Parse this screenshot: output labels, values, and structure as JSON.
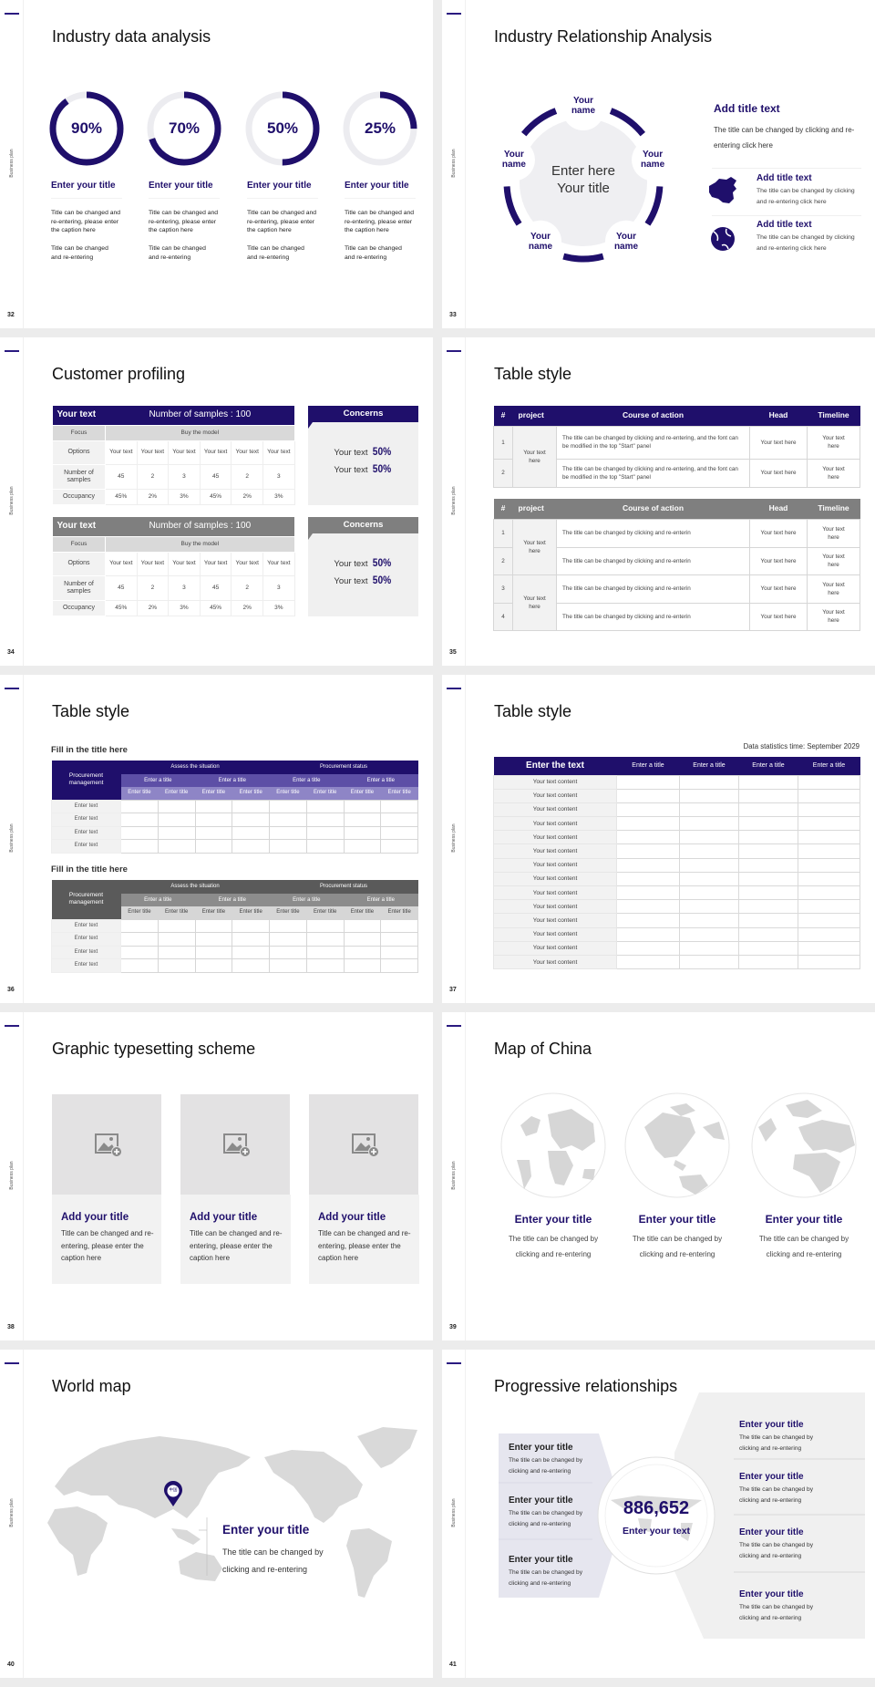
{
  "sidebar_label": "Business plan",
  "colors": {
    "navy": "#1f0f6b",
    "gray_header": "#7f7f7f",
    "light_panel": "#f0f0f0",
    "lavender_panel": "#e6e6ef",
    "map_gray": "#d9d9d9"
  },
  "s32": {
    "number": "32",
    "title": "Industry data analysis",
    "items": [
      {
        "label": "90%",
        "value": 90,
        "title": "Enter your title",
        "caption": "Title can be changed and re-entering, please enter the caption here",
        "note": "Title can be changed and re-entering"
      },
      {
        "label": "70%",
        "value": 70,
        "title": "Enter your title",
        "caption": "Title can be changed and re-entering, please enter the caption here",
        "note": "Title can be changed and re-entering"
      },
      {
        "label": "50%",
        "value": 50,
        "title": "Enter your title",
        "caption": "Title can be changed and re-entering, please enter the caption here",
        "note": "Title can be changed and re-entering"
      },
      {
        "label": "25%",
        "value": 25,
        "title": "Enter your title",
        "caption": "Title can be changed and re-entering, please enter the caption here",
        "note": "Title can be changed and re-entering"
      }
    ]
  },
  "s33": {
    "number": "33",
    "title": "Industry Relationship Analysis",
    "center_line1": "Enter here",
    "center_line2": "Your title",
    "names": [
      "Your name",
      "Your name",
      "Your name",
      "Your name",
      "Your name"
    ],
    "panel": {
      "title": "Add title text",
      "text": "The title can be changed by clicking and re-entering click here"
    },
    "items": [
      {
        "icon": "china-map-icon",
        "title": "Add title text",
        "text": "The title can be changed by clicking and re-entering click here"
      },
      {
        "icon": "globe-icon",
        "title": "Add title text",
        "text": "The title can be changed by clicking and re-entering click here"
      }
    ]
  },
  "s34": {
    "number": "34",
    "title": "Customer profiling",
    "tables": [
      {
        "style": "navy",
        "header_left": "Your text",
        "header_right": "Number of samples : 100",
        "focus_label": "Focus",
        "focus_value": "Buy the model",
        "rows": [
          {
            "label": "Options",
            "cells": [
              "Your text",
              "Your text",
              "Your text",
              "Your text",
              "Your text",
              "Your text"
            ]
          },
          {
            "label": "Number of samples",
            "cells": [
              "45",
              "2",
              "3",
              "45",
              "2",
              "3"
            ]
          },
          {
            "label": "Occupancy",
            "cells": [
              "45%",
              "2%",
              "3%",
              "45%",
              "2%",
              "3%"
            ]
          }
        ],
        "concerns": {
          "title": "Concerns",
          "lines": [
            {
              "text": "Your text",
              "value": "50%"
            },
            {
              "text": "Your text",
              "value": "50%"
            }
          ]
        }
      },
      {
        "style": "gray",
        "header_left": "Your text",
        "header_right": "Number of samples : 100",
        "focus_label": "Focus",
        "focus_value": "Buy the model",
        "rows": [
          {
            "label": "Options",
            "cells": [
              "Your text",
              "Your text",
              "Your text",
              "Your text",
              "Your text",
              "Your text"
            ]
          },
          {
            "label": "Number of samples",
            "cells": [
              "45",
              "2",
              "3",
              "45",
              "2",
              "3"
            ]
          },
          {
            "label": "Occupancy",
            "cells": [
              "45%",
              "2%",
              "3%",
              "45%",
              "2%",
              "3%"
            ]
          }
        ],
        "concerns": {
          "title": "Concerns",
          "lines": [
            {
              "text": "Your text",
              "value": "50%"
            },
            {
              "text": "Your text",
              "value": "50%"
            }
          ]
        }
      }
    ]
  },
  "s35": {
    "number": "35",
    "title": "Table style",
    "tables": [
      {
        "style": "navy",
        "headers": [
          "#",
          "project",
          "Course of action",
          "Head",
          "Timeline"
        ],
        "projects": [
          {
            "text": "Your text here",
            "span": 2
          }
        ],
        "rows": [
          {
            "n": "1",
            "action": "The title can be changed by clicking and re-entering, and the font can be modified in the top \"Start\" panel",
            "head": "Your text here",
            "timeline": "Your text here"
          },
          {
            "n": "2",
            "action": "The title can be changed by clicking and re-entering, and the font can be modified in the top \"Start\" panel",
            "head": "Your text here",
            "timeline": "Your text here"
          }
        ]
      },
      {
        "style": "gray",
        "headers": [
          "#",
          "project",
          "Course of action",
          "Head",
          "Timeline"
        ],
        "projects": [
          {
            "text": "Your text here",
            "span": 2
          },
          {
            "text": "Your text here",
            "span": 2
          }
        ],
        "rows": [
          {
            "n": "1",
            "action": "The title can be changed by clicking and re-enterin",
            "head": "Your text here",
            "timeline": "Your text here"
          },
          {
            "n": "2",
            "action": "The title can be changed by clicking and re-enterin",
            "head": "Your text here",
            "timeline": "Your text here"
          },
          {
            "n": "3",
            "action": "The title can be changed by clicking and re-enterin",
            "head": "Your text here",
            "timeline": "Your text here"
          },
          {
            "n": "4",
            "action": "The title can be changed by clicking and re-enterin",
            "head": "Your text here",
            "timeline": "Your text here"
          }
        ]
      }
    ]
  },
  "s36": {
    "number": "36",
    "title": "Table style",
    "tables": [
      {
        "style": "navy",
        "heading": "Fill in the title here",
        "corner": "Procurement management",
        "groups": [
          "Assess the situation",
          "Procurement status"
        ],
        "subgroups": [
          "Enter a title",
          "Enter a title",
          "Enter a title",
          "Enter a title"
        ],
        "columns": [
          "Enter title",
          "Enter title",
          "Enter title",
          "Enter title",
          "Enter title",
          "Enter title",
          "Enter title",
          "Enter title"
        ],
        "rows": [
          "Enter text",
          "Enter text",
          "Enter text",
          "Enter text"
        ]
      },
      {
        "style": "gray",
        "heading": "Fill in the title here",
        "corner": "Procurement management",
        "groups": [
          "Assess the situation",
          "Procurement status"
        ],
        "subgroups": [
          "Enter a title",
          "Enter a title",
          "Enter a title",
          "Enter a title"
        ],
        "columns": [
          "Enter title",
          "Enter title",
          "Enter title",
          "Enter title",
          "Enter title",
          "Enter title",
          "Enter title",
          "Enter title"
        ],
        "rows": [
          "Enter text",
          "Enter text",
          "Enter text",
          "Enter text"
        ]
      }
    ]
  },
  "s37": {
    "number": "37",
    "title": "Table style",
    "note": "Data statistics time: September 2029",
    "headers": [
      "Enter the text",
      "Enter a title",
      "Enter a title",
      "Enter a title",
      "Enter a title"
    ],
    "rows": [
      "Your text content",
      "Your text content",
      "Your text content",
      "Your text content",
      "Your text content",
      "Your text content",
      "Your text content",
      "Your text content",
      "Your text content",
      "Your text content",
      "Your text content",
      "Your text content",
      "Your text content",
      "Your text content"
    ]
  },
  "s38": {
    "number": "38",
    "title": "Graphic typesetting scheme",
    "cards": [
      {
        "title": "Add your title",
        "text": "Title can be changed and re-entering, please enter the caption here"
      },
      {
        "title": "Add your title",
        "text": "Title can be changed and re-entering, please enter the caption here"
      },
      {
        "title": "Add your title",
        "text": "Title can be changed and re-entering, please enter the caption here"
      }
    ]
  },
  "s39": {
    "number": "39",
    "title": "Map of China",
    "items": [
      {
        "title": "Enter your title",
        "text": "The title can be changed by clicking and re-entering"
      },
      {
        "title": "Enter your title",
        "text": "The title can be changed by clicking and re-entering"
      },
      {
        "title": "Enter your title",
        "text": "The title can be changed by clicking and re-entering"
      }
    ]
  },
  "s40": {
    "number": "40",
    "title": "World map",
    "pin": "中国",
    "callout": {
      "title": "Enter your title",
      "text": "The title can be changed by clicking and re-entering"
    }
  },
  "s41": {
    "number": "41",
    "title": "Progressive relationships",
    "center_value": "886,652",
    "center_label": "Enter your text",
    "left": [
      {
        "title": "Enter your title",
        "text": "The title can be changed by clicking and re-entering"
      },
      {
        "title": "Enter your title",
        "text": "The title can be changed by clicking and re-entering"
      },
      {
        "title": "Enter your title",
        "text": "The title can be changed by clicking and re-entering"
      }
    ],
    "right": [
      {
        "title": "Enter your title",
        "text": "The title can be changed by clicking and re-entering"
      },
      {
        "title": "Enter your title",
        "text": "The title can be changed by clicking and re-entering"
      },
      {
        "title": "Enter your title",
        "text": "The title can be changed by clicking and re-entering"
      },
      {
        "title": "Enter your title",
        "text": "The title can be changed by clicking and re-entering"
      }
    ]
  }
}
